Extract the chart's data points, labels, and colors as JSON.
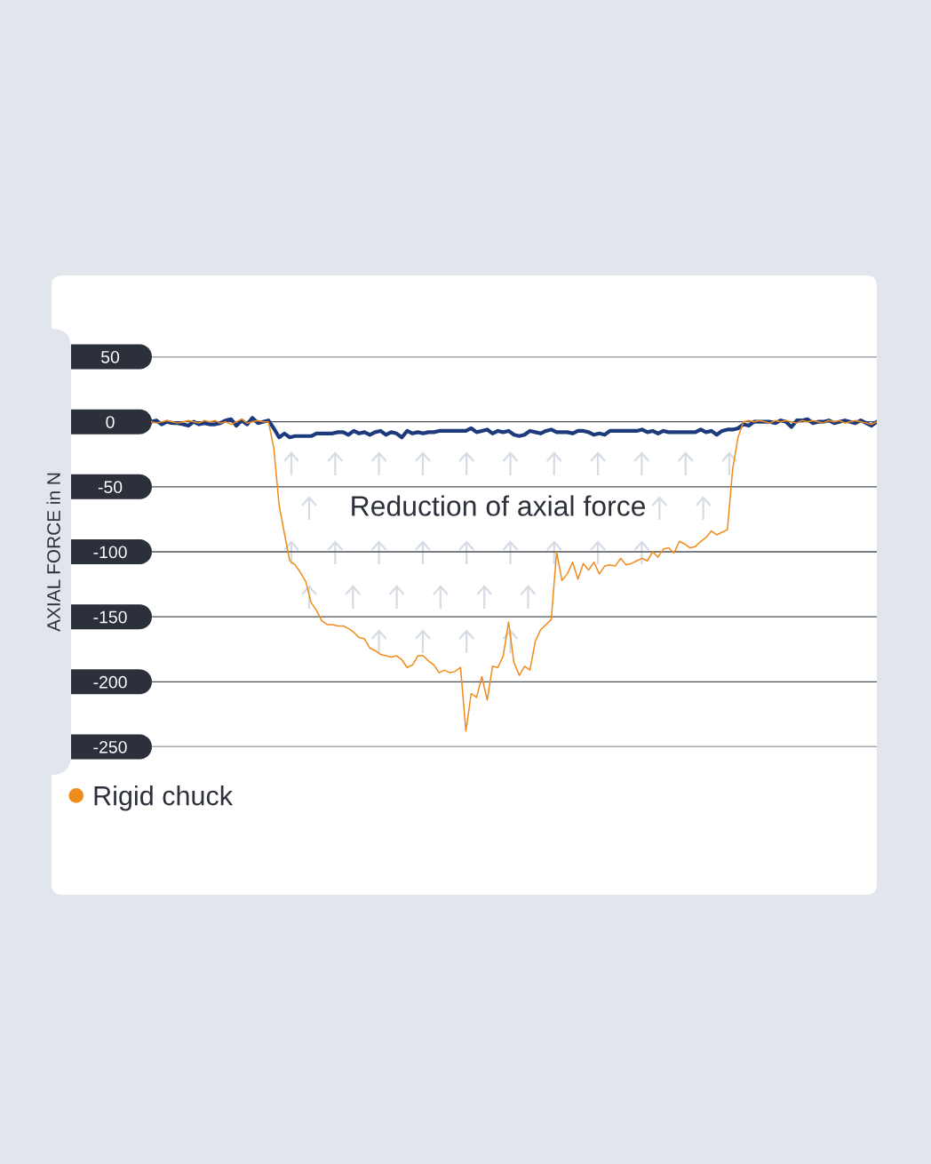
{
  "chart_data": {
    "type": "line",
    "ylabel": "AXIAL FORCE in N",
    "annotations": [
      "Reduction of axial force"
    ],
    "categories": [
      null,
      null,
      null,
      null,
      null,
      null,
      null,
      null,
      null,
      null,
      null,
      null,
      null,
      null,
      null,
      null,
      null,
      null,
      null,
      null,
      null,
      null,
      null,
      null,
      null,
      null,
      null,
      null,
      null,
      null,
      null,
      null,
      null,
      null,
      null,
      null,
      null,
      null,
      null,
      null,
      null,
      null,
      null,
      null,
      null,
      null,
      null,
      null,
      null,
      null,
      null,
      null,
      null,
      null,
      null,
      null,
      null,
      null,
      null,
      null,
      null,
      null,
      null,
      null,
      null,
      null,
      null,
      null,
      null,
      null,
      null,
      null,
      null,
      null,
      null,
      null,
      null,
      null,
      null,
      null,
      null,
      null,
      null,
      null,
      null,
      null,
      null,
      null,
      null,
      null,
      null,
      null,
      null,
      null,
      null,
      null,
      null,
      null,
      null,
      null,
      null,
      null,
      null,
      null,
      null,
      null,
      null,
      null,
      null,
      null,
      null,
      null,
      null,
      null,
      null,
      null,
      null,
      null,
      null,
      null,
      null,
      null,
      null,
      null,
      null,
      null,
      null,
      null,
      null,
      null,
      null,
      null,
      null,
      null,
      null,
      null,
      null
    ],
    "series": [
      {
        "color": "#1d3a7c",
        "values": [
          0,
          1,
          -2,
          0,
          -1,
          -1,
          -2,
          -3,
          0,
          -2,
          -1,
          -2,
          -2,
          -1,
          1,
          2,
          -3,
          1,
          -2,
          3,
          -1,
          0,
          1,
          -5,
          -12,
          -9,
          -12,
          -11,
          -11,
          -11,
          -11,
          -9,
          -9,
          -9,
          -9,
          -8,
          -8,
          -10,
          -7,
          -9,
          -8,
          -10,
          -8,
          -7,
          -10,
          -8,
          -9,
          -12,
          -7,
          -9,
          -8,
          -9,
          -8,
          -8,
          -7,
          -7,
          -7,
          -7,
          -7,
          -7,
          -5,
          -8,
          -7,
          -6,
          -9,
          -7,
          -8,
          -7,
          -10,
          -11,
          -10,
          -7,
          -8,
          -9,
          -7,
          -6,
          -8,
          -8,
          -8,
          -9,
          -7,
          -7,
          -8,
          -10,
          -9,
          -10,
          -7,
          -7,
          -7,
          -7,
          -7,
          -7,
          -6,
          -8,
          -7,
          -9,
          -7,
          -8,
          -8,
          -8,
          -8,
          -8,
          -8,
          -6,
          -8,
          -7,
          -10,
          -7,
          -6,
          -6,
          -5,
          -2,
          -3,
          0,
          0,
          0,
          0,
          -1,
          1,
          0,
          -4,
          1,
          1,
          2,
          -1,
          0,
          0,
          1,
          -1,
          0,
          1,
          0,
          -1,
          1,
          -1,
          -3,
          0
        ]
      },
      {
        "name": "Rigid chuck",
        "color": "#f08c1c",
        "values": [
          0,
          -1,
          0,
          1,
          0,
          -1,
          0,
          1,
          0,
          -1,
          1,
          0,
          1,
          -1,
          0,
          -2,
          0,
          2,
          -1,
          0,
          1,
          0,
          0,
          -20,
          -64,
          -86,
          -107,
          -110,
          -116,
          -123,
          -139,
          -145,
          -153,
          -156,
          -156,
          -157,
          -157,
          -159,
          -162,
          -166,
          -167,
          -174,
          -176,
          -179,
          -180,
          -181,
          -180,
          -183,
          -189,
          -187,
          -180,
          -180,
          -184,
          -187,
          -193,
          -191,
          -193,
          -192,
          -189,
          -238,
          -209,
          -212,
          -196,
          -214,
          -188,
          -189,
          -180,
          -154,
          -185,
          -195,
          -188,
          -191,
          -169,
          -160,
          -156,
          -152,
          -100,
          -122,
          -117,
          -108,
          -121,
          -109,
          -114,
          -108,
          -117,
          -111,
          -110,
          -111,
          -105,
          -110,
          -109,
          -107,
          -105,
          -107,
          -100,
          -104,
          -98,
          -97,
          -101,
          -92,
          -94,
          -97,
          -96,
          -92,
          -89,
          -84,
          -87,
          -85,
          -83,
          -36,
          -12,
          0,
          1,
          0,
          1,
          0,
          -1,
          1,
          0,
          1,
          0,
          -1,
          1,
          0,
          1,
          0,
          -1,
          1,
          0,
          1,
          -1,
          0,
          1,
          0,
          -1,
          -2,
          0
        ]
      }
    ],
    "ylim": [
      -250,
      50
    ],
    "yticks": [
      -250,
      -200,
      -150,
      -100,
      -50,
      0,
      50
    ],
    "grid": "y",
    "legend": "bottom left",
    "tick_labels": "y"
  }
}
